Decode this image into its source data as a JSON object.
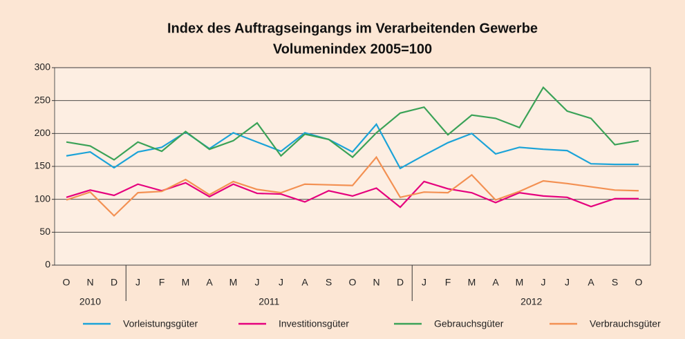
{
  "chart_data": {
    "type": "line",
    "title": "Index des Auftragseingangs im Verarbeitenden Gewerbe",
    "subtitle": "Volumenindex 2005=100",
    "categories": [
      "O",
      "N",
      "D",
      "J",
      "F",
      "M",
      "A",
      "M",
      "J",
      "J",
      "A",
      "S",
      "O",
      "N",
      "D",
      "J",
      "F",
      "M",
      "A",
      "M",
      "J",
      "J",
      "A",
      "S",
      "O"
    ],
    "x_groups": [
      {
        "label": "2010",
        "start": 0,
        "end": 2
      },
      {
        "label": "2011",
        "start": 3,
        "end": 14
      },
      {
        "label": "2012",
        "start": 15,
        "end": 24
      }
    ],
    "ylim": [
      0,
      300
    ],
    "yticks": [
      0,
      50,
      100,
      150,
      200,
      250,
      300
    ],
    "grid": true,
    "legend": "bottom",
    "series": [
      {
        "name": "Vorleistungsgüter",
        "color": "#1ba3d8",
        "values": [
          166,
          172,
          148,
          172,
          179,
          202,
          177,
          201,
          187,
          173,
          201,
          191,
          172,
          214,
          147,
          167,
          186,
          200,
          169,
          179,
          176,
          174,
          154,
          153,
          153
        ]
      },
      {
        "name": "Investitionsgüter",
        "color": "#e5007d",
        "values": [
          103,
          114,
          106,
          123,
          113,
          125,
          104,
          123,
          109,
          108,
          96,
          113,
          105,
          117,
          88,
          127,
          116,
          110,
          95,
          110,
          105,
          103,
          89,
          101,
          101
        ]
      },
      {
        "name": "Gebrauchsgüter",
        "color": "#3aa257",
        "values": [
          187,
          181,
          160,
          187,
          173,
          203,
          176,
          189,
          216,
          166,
          199,
          191,
          164,
          201,
          231,
          240,
          198,
          228,
          223,
          209,
          270,
          234,
          223,
          183,
          189
        ]
      },
      {
        "name": "Verbrauchsgüter",
        "color": "#f39052",
        "values": [
          99,
          111,
          75,
          110,
          112,
          130,
          107,
          127,
          115,
          110,
          123,
          122,
          121,
          164,
          103,
          111,
          110,
          137,
          99,
          112,
          128,
          124,
          119,
          114,
          113
        ]
      }
    ]
  }
}
